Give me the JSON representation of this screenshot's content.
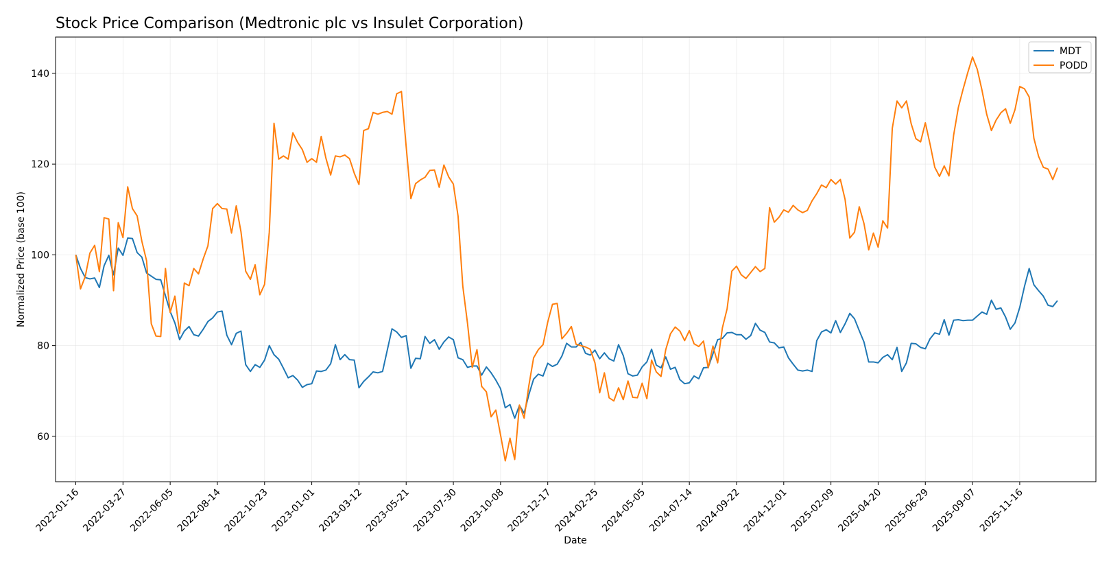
{
  "chart_data": {
    "type": "line",
    "title": "Stock Price Comparison (Medtronic plc vs Insulet Corporation)",
    "xlabel": "Date",
    "ylabel": "Normalized Price (base 100)",
    "ylim": [
      50,
      148
    ],
    "yticks": [
      60,
      80,
      100,
      120,
      140
    ],
    "xlim": [
      "2021-12-17",
      "2026-03-09"
    ],
    "xticks": [
      "2022-01-16",
      "2022-03-27",
      "2022-06-05",
      "2022-08-14",
      "2022-10-23",
      "2023-01-01",
      "2023-03-12",
      "2023-05-21",
      "2023-07-30",
      "2023-10-08",
      "2023-12-17",
      "2024-02-25",
      "2024-05-05",
      "2024-07-14",
      "2024-09-22",
      "2024-12-01",
      "2025-02-09",
      "2025-04-20",
      "2025-06-29",
      "2025-09-07",
      "2025-11-16"
    ],
    "x_start": "2022-01-16",
    "x_step_days": 7,
    "grid": true,
    "legend": "top-right",
    "colors": {
      "MDT": "#1f77b4",
      "PODD": "#ff7f0e"
    },
    "series": [
      {
        "name": "MDT",
        "values": [
          100.0,
          97.0,
          95.0,
          94.7,
          94.9,
          92.8,
          97.6,
          99.9,
          95.6,
          101.5,
          99.9,
          103.7,
          103.6,
          100.5,
          99.5,
          96.0,
          95.3,
          94.6,
          94.5,
          91.0,
          87.5,
          85.0,
          81.3,
          83.2,
          84.2,
          82.4,
          82.1,
          83.6,
          85.3,
          86.1,
          87.4,
          87.6,
          82.3,
          80.2,
          82.7,
          83.2,
          75.8,
          74.3,
          75.8,
          75.2,
          76.8,
          80.0,
          78.0,
          77.0,
          75.0,
          72.9,
          73.4,
          72.4,
          70.8,
          71.4,
          71.6,
          74.4,
          74.3,
          74.6,
          76.0,
          80.2,
          76.9,
          78.0,
          76.9,
          76.8,
          70.7,
          72.1,
          73.1,
          74.2,
          74.0,
          74.3,
          79.0,
          83.7,
          83.0,
          81.8,
          82.2,
          75.0,
          77.2,
          77.1,
          82.0,
          80.5,
          81.3,
          79.2,
          80.8,
          81.9,
          81.3,
          77.3,
          76.9,
          75.2,
          75.5,
          75.5,
          73.5,
          75.3,
          74.0,
          72.4,
          70.5,
          66.3,
          67.0,
          64.0,
          66.8,
          65.1,
          69.2,
          72.6,
          73.7,
          73.3,
          76.1,
          75.4,
          75.9,
          77.7,
          80.5,
          79.7,
          79.7,
          80.7,
          78.3,
          77.9,
          79.0,
          77.1,
          78.4,
          77.1,
          76.6,
          80.2,
          77.8,
          73.8,
          73.3,
          73.5,
          75.3,
          76.4,
          79.2,
          75.7,
          75.1,
          77.5,
          74.8,
          75.2,
          72.5,
          71.6,
          71.8,
          73.3,
          72.7,
          75.1,
          75.2,
          78.2,
          81.3,
          81.6,
          82.8,
          82.9,
          82.4,
          82.4,
          81.4,
          82.2,
          84.9,
          83.4,
          82.9,
          80.8,
          80.6,
          79.5,
          79.7,
          77.3,
          75.9,
          74.6,
          74.4,
          74.6,
          74.3,
          81.1,
          83.0,
          83.5,
          82.8,
          85.5,
          82.9,
          84.8,
          87.1,
          85.9,
          83.3,
          80.8,
          76.4,
          76.4,
          76.2,
          77.4,
          78.0,
          76.9,
          79.6,
          74.3,
          76.2,
          80.5,
          80.4,
          79.6,
          79.3,
          81.5,
          82.8,
          82.5,
          85.7,
          82.3,
          85.6,
          85.7,
          85.5,
          85.6,
          85.6,
          86.5,
          87.4,
          86.9,
          90.0,
          88.0,
          88.3,
          86.3,
          83.6,
          85.0,
          88.4,
          93.0,
          97.0,
          93.4,
          92.1,
          90.9,
          88.9,
          88.6,
          89.9
        ]
      },
      {
        "name": "PODD",
        "values": [
          100.0,
          92.5,
          95.2,
          100.4,
          102.1,
          96.3,
          108.2,
          107.9,
          92.1,
          107.1,
          103.8,
          115.0,
          110.2,
          108.6,
          103.0,
          98.7,
          84.8,
          82.1,
          82.0,
          97.0,
          87.3,
          90.9,
          82.7,
          93.8,
          93.2,
          97.0,
          95.8,
          99.1,
          102.0,
          110.2,
          111.3,
          110.2,
          110.1,
          104.8,
          110.8,
          105.1,
          96.4,
          94.6,
          97.8,
          91.2,
          93.5,
          105.0,
          129.0,
          121.1,
          121.8,
          121.1,
          126.9,
          124.8,
          123.2,
          120.4,
          121.2,
          120.4,
          126.1,
          121.3,
          117.6,
          121.8,
          121.6,
          122.0,
          121.2,
          118.0,
          115.5,
          127.4,
          127.8,
          131.4,
          131.0,
          131.4,
          131.6,
          131.0,
          135.5,
          136.0,
          123.9,
          112.4,
          115.7,
          116.5,
          117.1,
          118.6,
          118.7,
          114.9,
          119.8,
          117.2,
          115.6,
          108.5,
          93.1,
          84.9,
          75.2,
          79.1,
          71.0,
          69.8,
          64.3,
          65.8,
          60.3,
          54.6,
          59.6,
          54.9,
          66.9,
          64.0,
          71.2,
          77.3,
          79.1,
          80.2,
          85.2,
          89.1,
          89.3,
          81.5,
          82.7,
          84.2,
          80.3,
          80.0,
          79.7,
          79.2,
          76.2,
          69.6,
          74.0,
          68.5,
          67.8,
          70.7,
          68.1,
          72.2,
          68.6,
          68.5,
          71.7,
          68.3,
          76.8,
          74.2,
          73.2,
          79.1,
          82.6,
          84.1,
          83.2,
          81.1,
          83.3,
          80.4,
          79.8,
          81.0,
          75.1,
          79.9,
          76.2,
          83.9,
          88.1,
          96.4,
          97.5,
          95.6,
          94.8,
          96.1,
          97.4,
          96.3,
          97.0,
          110.4,
          107.2,
          108.3,
          109.9,
          109.4,
          110.9,
          109.9,
          109.3,
          109.8,
          111.9,
          113.5,
          115.4,
          114.8,
          116.6,
          115.6,
          116.6,
          112.2,
          103.7,
          105.0,
          110.6,
          106.9,
          101.1,
          104.8,
          101.7,
          107.5,
          105.9,
          127.9,
          133.9,
          132.4,
          133.9,
          128.9,
          125.6,
          124.9,
          129.1,
          124.4,
          119.3,
          117.3,
          119.6,
          117.4,
          126.4,
          132.5,
          136.5,
          140.2,
          143.6,
          140.9,
          136.3,
          131.0,
          127.4,
          129.7,
          131.3,
          132.2,
          129.0,
          132.0,
          137.1,
          136.6,
          134.8,
          125.7,
          121.7,
          119.3,
          118.9,
          116.6,
          119.2
        ]
      }
    ]
  }
}
